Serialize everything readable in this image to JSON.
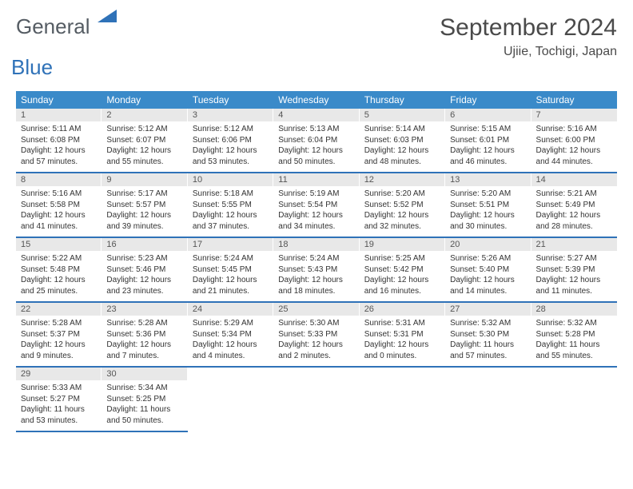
{
  "logo": {
    "text1": "General",
    "text2": "Blue",
    "accent_color": "#2f72b8",
    "gray": "#555c63"
  },
  "header": {
    "month_title": "September 2024",
    "location": "Ujiie, Tochigi, Japan"
  },
  "colors": {
    "header_bg": "#3a8ac9",
    "header_fg": "#ffffff",
    "row_divider": "#2f72b8",
    "daynum_bg": "#e8e8e8",
    "text": "#333333"
  },
  "day_names": [
    "Sunday",
    "Monday",
    "Tuesday",
    "Wednesday",
    "Thursday",
    "Friday",
    "Saturday"
  ],
  "weeks": [
    [
      {
        "n": "1",
        "sr": "Sunrise: 5:11 AM",
        "ss": "Sunset: 6:08 PM",
        "dl": "Daylight: 12 hours and 57 minutes."
      },
      {
        "n": "2",
        "sr": "Sunrise: 5:12 AM",
        "ss": "Sunset: 6:07 PM",
        "dl": "Daylight: 12 hours and 55 minutes."
      },
      {
        "n": "3",
        "sr": "Sunrise: 5:12 AM",
        "ss": "Sunset: 6:06 PM",
        "dl": "Daylight: 12 hours and 53 minutes."
      },
      {
        "n": "4",
        "sr": "Sunrise: 5:13 AM",
        "ss": "Sunset: 6:04 PM",
        "dl": "Daylight: 12 hours and 50 minutes."
      },
      {
        "n": "5",
        "sr": "Sunrise: 5:14 AM",
        "ss": "Sunset: 6:03 PM",
        "dl": "Daylight: 12 hours and 48 minutes."
      },
      {
        "n": "6",
        "sr": "Sunrise: 5:15 AM",
        "ss": "Sunset: 6:01 PM",
        "dl": "Daylight: 12 hours and 46 minutes."
      },
      {
        "n": "7",
        "sr": "Sunrise: 5:16 AM",
        "ss": "Sunset: 6:00 PM",
        "dl": "Daylight: 12 hours and 44 minutes."
      }
    ],
    [
      {
        "n": "8",
        "sr": "Sunrise: 5:16 AM",
        "ss": "Sunset: 5:58 PM",
        "dl": "Daylight: 12 hours and 41 minutes."
      },
      {
        "n": "9",
        "sr": "Sunrise: 5:17 AM",
        "ss": "Sunset: 5:57 PM",
        "dl": "Daylight: 12 hours and 39 minutes."
      },
      {
        "n": "10",
        "sr": "Sunrise: 5:18 AM",
        "ss": "Sunset: 5:55 PM",
        "dl": "Daylight: 12 hours and 37 minutes."
      },
      {
        "n": "11",
        "sr": "Sunrise: 5:19 AM",
        "ss": "Sunset: 5:54 PM",
        "dl": "Daylight: 12 hours and 34 minutes."
      },
      {
        "n": "12",
        "sr": "Sunrise: 5:20 AM",
        "ss": "Sunset: 5:52 PM",
        "dl": "Daylight: 12 hours and 32 minutes."
      },
      {
        "n": "13",
        "sr": "Sunrise: 5:20 AM",
        "ss": "Sunset: 5:51 PM",
        "dl": "Daylight: 12 hours and 30 minutes."
      },
      {
        "n": "14",
        "sr": "Sunrise: 5:21 AM",
        "ss": "Sunset: 5:49 PM",
        "dl": "Daylight: 12 hours and 28 minutes."
      }
    ],
    [
      {
        "n": "15",
        "sr": "Sunrise: 5:22 AM",
        "ss": "Sunset: 5:48 PM",
        "dl": "Daylight: 12 hours and 25 minutes."
      },
      {
        "n": "16",
        "sr": "Sunrise: 5:23 AM",
        "ss": "Sunset: 5:46 PM",
        "dl": "Daylight: 12 hours and 23 minutes."
      },
      {
        "n": "17",
        "sr": "Sunrise: 5:24 AM",
        "ss": "Sunset: 5:45 PM",
        "dl": "Daylight: 12 hours and 21 minutes."
      },
      {
        "n": "18",
        "sr": "Sunrise: 5:24 AM",
        "ss": "Sunset: 5:43 PM",
        "dl": "Daylight: 12 hours and 18 minutes."
      },
      {
        "n": "19",
        "sr": "Sunrise: 5:25 AM",
        "ss": "Sunset: 5:42 PM",
        "dl": "Daylight: 12 hours and 16 minutes."
      },
      {
        "n": "20",
        "sr": "Sunrise: 5:26 AM",
        "ss": "Sunset: 5:40 PM",
        "dl": "Daylight: 12 hours and 14 minutes."
      },
      {
        "n": "21",
        "sr": "Sunrise: 5:27 AM",
        "ss": "Sunset: 5:39 PM",
        "dl": "Daylight: 12 hours and 11 minutes."
      }
    ],
    [
      {
        "n": "22",
        "sr": "Sunrise: 5:28 AM",
        "ss": "Sunset: 5:37 PM",
        "dl": "Daylight: 12 hours and 9 minutes."
      },
      {
        "n": "23",
        "sr": "Sunrise: 5:28 AM",
        "ss": "Sunset: 5:36 PM",
        "dl": "Daylight: 12 hours and 7 minutes."
      },
      {
        "n": "24",
        "sr": "Sunrise: 5:29 AM",
        "ss": "Sunset: 5:34 PM",
        "dl": "Daylight: 12 hours and 4 minutes."
      },
      {
        "n": "25",
        "sr": "Sunrise: 5:30 AM",
        "ss": "Sunset: 5:33 PM",
        "dl": "Daylight: 12 hours and 2 minutes."
      },
      {
        "n": "26",
        "sr": "Sunrise: 5:31 AM",
        "ss": "Sunset: 5:31 PM",
        "dl": "Daylight: 12 hours and 0 minutes."
      },
      {
        "n": "27",
        "sr": "Sunrise: 5:32 AM",
        "ss": "Sunset: 5:30 PM",
        "dl": "Daylight: 11 hours and 57 minutes."
      },
      {
        "n": "28",
        "sr": "Sunrise: 5:32 AM",
        "ss": "Sunset: 5:28 PM",
        "dl": "Daylight: 11 hours and 55 minutes."
      }
    ],
    [
      {
        "n": "29",
        "sr": "Sunrise: 5:33 AM",
        "ss": "Sunset: 5:27 PM",
        "dl": "Daylight: 11 hours and 53 minutes."
      },
      {
        "n": "30",
        "sr": "Sunrise: 5:34 AM",
        "ss": "Sunset: 5:25 PM",
        "dl": "Daylight: 11 hours and 50 minutes."
      },
      null,
      null,
      null,
      null,
      null
    ]
  ]
}
